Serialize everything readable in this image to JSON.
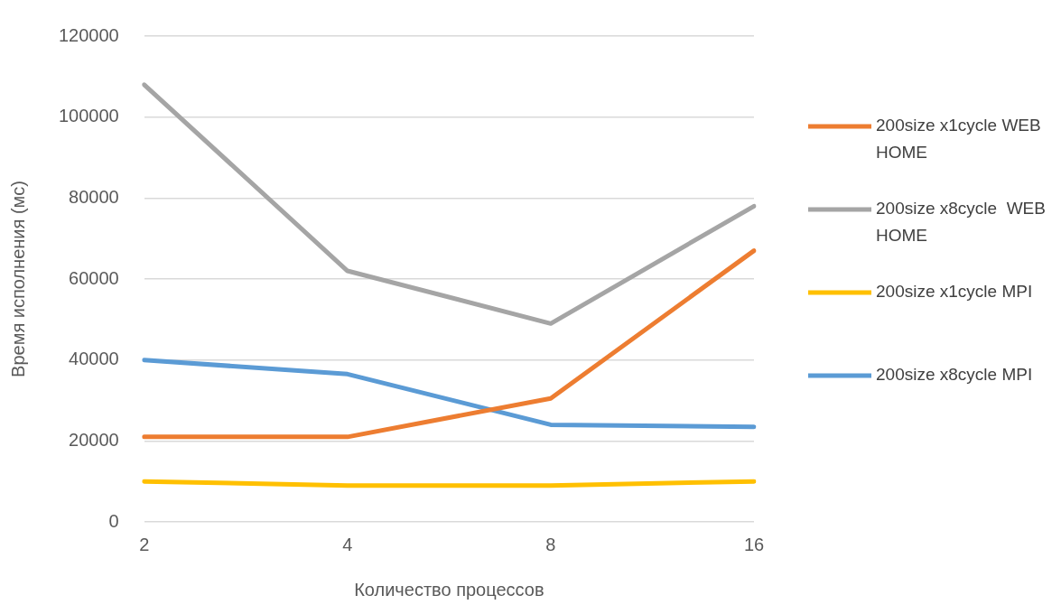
{
  "chart_data": {
    "type": "line",
    "xlabel": "Количество процессов",
    "ylabel": "Время исполнения (мс)",
    "categories": [
      "2",
      "4",
      "8",
      "16"
    ],
    "series": [
      {
        "name": "200size x1cycle WEB HOME",
        "color": "#ed7d31",
        "values": [
          21000,
          21000,
          30500,
          67000
        ]
      },
      {
        "name": "200size x8cycle  WEB HOME",
        "color": "#a5a5a5",
        "values": [
          108000,
          62000,
          49000,
          78000
        ]
      },
      {
        "name": "200size x1cycle MPI",
        "color": "#ffc000",
        "values": [
          10000,
          9000,
          9000,
          10000
        ]
      },
      {
        "name": "200size x8cycle MPI",
        "color": "#5b9bd5",
        "values": [
          40000,
          36500,
          24000,
          23500
        ]
      }
    ],
    "ylim": [
      0,
      120000
    ],
    "yticks": [
      0,
      20000,
      40000,
      60000,
      80000,
      100000,
      120000
    ],
    "grid": "y",
    "legend": "right",
    "marker": "none",
    "line_style": "solid"
  }
}
